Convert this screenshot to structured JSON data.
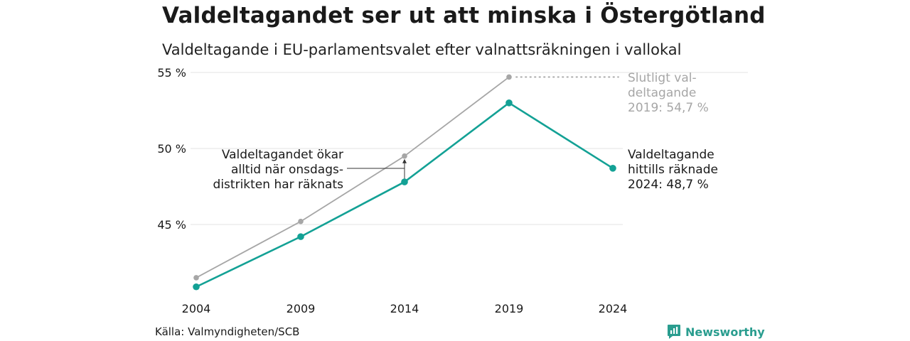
{
  "title": "Valdeltagandet ser ut att minska i Östergötland",
  "subtitle": "Valdeltagande i EU-parlamentsvalet efter valnattsräkningen i vallokal",
  "source": "Källa: Valmyndigheten/SCB",
  "brand": {
    "name": "Newsworthy",
    "icon": "bar-chart-icon"
  },
  "colors": {
    "counted": "#13a195",
    "final": "#a6a6a6",
    "grid": "#e3e3e3"
  },
  "chart_data": {
    "type": "line",
    "x": [
      "2004",
      "2009",
      "2014",
      "2019",
      "2024"
    ],
    "ylim": [
      40.5,
      55
    ],
    "yticks": [
      45,
      50,
      55
    ],
    "ytick_labels": [
      "45 %",
      "50 %",
      "55 %"
    ],
    "grid": true,
    "legend": "none",
    "series": [
      {
        "key": "final",
        "values": [
          41.5,
          45.2,
          49.5,
          54.7,
          null
        ]
      },
      {
        "key": "counted",
        "values": [
          40.9,
          44.2,
          47.8,
          53.0,
          48.7
        ]
      }
    ],
    "annotations": {
      "final_label": [
        "Slutligt val-",
        "deltagande",
        "2019: 54,7 %"
      ],
      "counted_label": [
        "Valdeltagande",
        "hittills räknade",
        "2024: 48,7 %"
      ],
      "gap_note": [
        "Valdeltagandet ökar",
        "alltid när onsdags-",
        "distrikten har räknats"
      ]
    }
  }
}
